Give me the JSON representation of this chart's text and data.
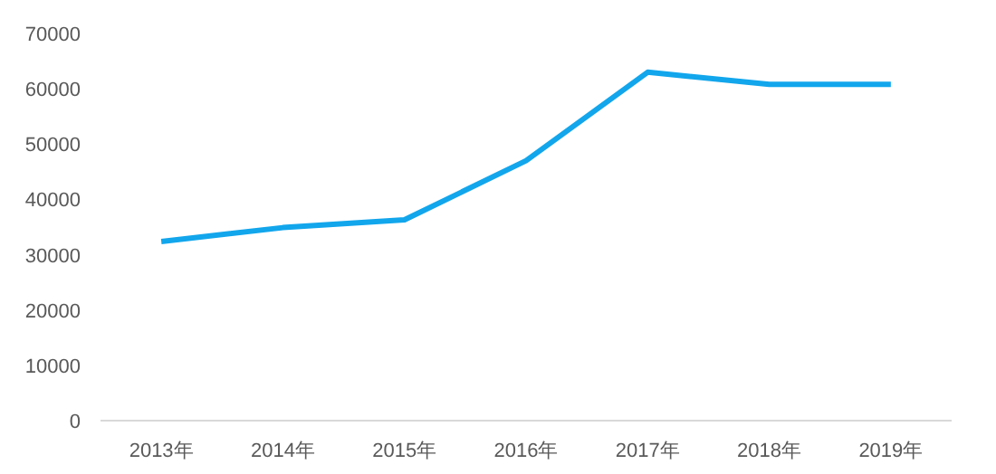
{
  "chart_data": {
    "type": "line",
    "categories": [
      "2013年",
      "2014年",
      "2015年",
      "2016年",
      "2017年",
      "2018年",
      "2019年"
    ],
    "series": [
      {
        "color": "#12a6ec",
        "values": [
          32400,
          34900,
          36300,
          47000,
          63000,
          60800,
          60800
        ]
      }
    ],
    "ylim": [
      0,
      70000
    ],
    "yticks": [
      0,
      10000,
      20000,
      30000,
      40000,
      50000,
      60000,
      70000
    ],
    "grid": false,
    "marker": "none",
    "line_style": "solid"
  }
}
